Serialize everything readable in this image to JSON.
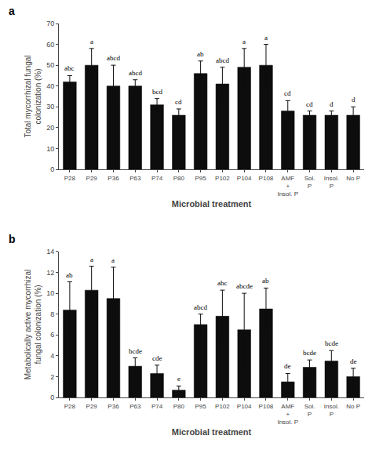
{
  "chart_data": [
    {
      "type": "bar",
      "title": "a",
      "xlabel": "Microbial treatment",
      "ylabel": "Total mycorrhizal fungal\ncolonization (%)",
      "categories": [
        "P28",
        "P29",
        "P36",
        "P63",
        "P74",
        "P80",
        "P95",
        "P102",
        "P104",
        "P108",
        "AMF\n+\nInsol. P",
        "Sol.\nP",
        "Insol.\nP",
        "No P"
      ],
      "values": [
        42,
        50,
        40,
        40,
        31,
        26,
        46,
        41,
        49,
        50,
        28,
        26,
        26,
        26
      ],
      "errors": [
        3,
        8,
        10,
        3,
        3,
        3,
        6,
        8,
        9,
        10,
        5,
        2,
        2,
        4
      ],
      "annotations": [
        "abc",
        "a",
        "abcd",
        "abcd",
        "bcd",
        "cd",
        "ab",
        "abcd",
        "a",
        "a",
        "cd",
        "cd",
        "d",
        "d"
      ],
      "color": "#0d0d0d",
      "ylim": [
        0,
        70
      ],
      "yticks": [
        0,
        10,
        20,
        30,
        40,
        50,
        60,
        70
      ],
      "grid": false
    },
    {
      "type": "bar",
      "title": "b",
      "xlabel": "Microbial treatment",
      "ylabel": "Metabolically active mycorrhizal\nfungal colonization (%)",
      "categories": [
        "P28",
        "P29",
        "P36",
        "P63",
        "P74",
        "P80",
        "P95",
        "P102",
        "P104",
        "P108",
        "AMF\n+\nInsol. P",
        "Sol.\nP",
        "Insol.\nP",
        "No P"
      ],
      "values": [
        8.4,
        10.3,
        9.5,
        3.0,
        2.3,
        0.7,
        7.0,
        7.8,
        6.5,
        8.5,
        1.5,
        2.9,
        3.5,
        2.0
      ],
      "errors": [
        2.7,
        2.3,
        3.0,
        0.8,
        0.8,
        0.4,
        1.0,
        2.5,
        3.5,
        2.0,
        0.8,
        0.7,
        1.0,
        0.8
      ],
      "annotations": [
        "ab",
        "a",
        "a",
        "bcde",
        "cde",
        "e",
        "abcd",
        "abc",
        "abcde",
        "ab",
        "de",
        "bcde",
        "bcde",
        "de"
      ],
      "color": "#0d0d0d",
      "ylim": [
        0,
        14
      ],
      "yticks": [
        0,
        2,
        4,
        6,
        8,
        10,
        12,
        14
      ],
      "grid": false
    }
  ]
}
